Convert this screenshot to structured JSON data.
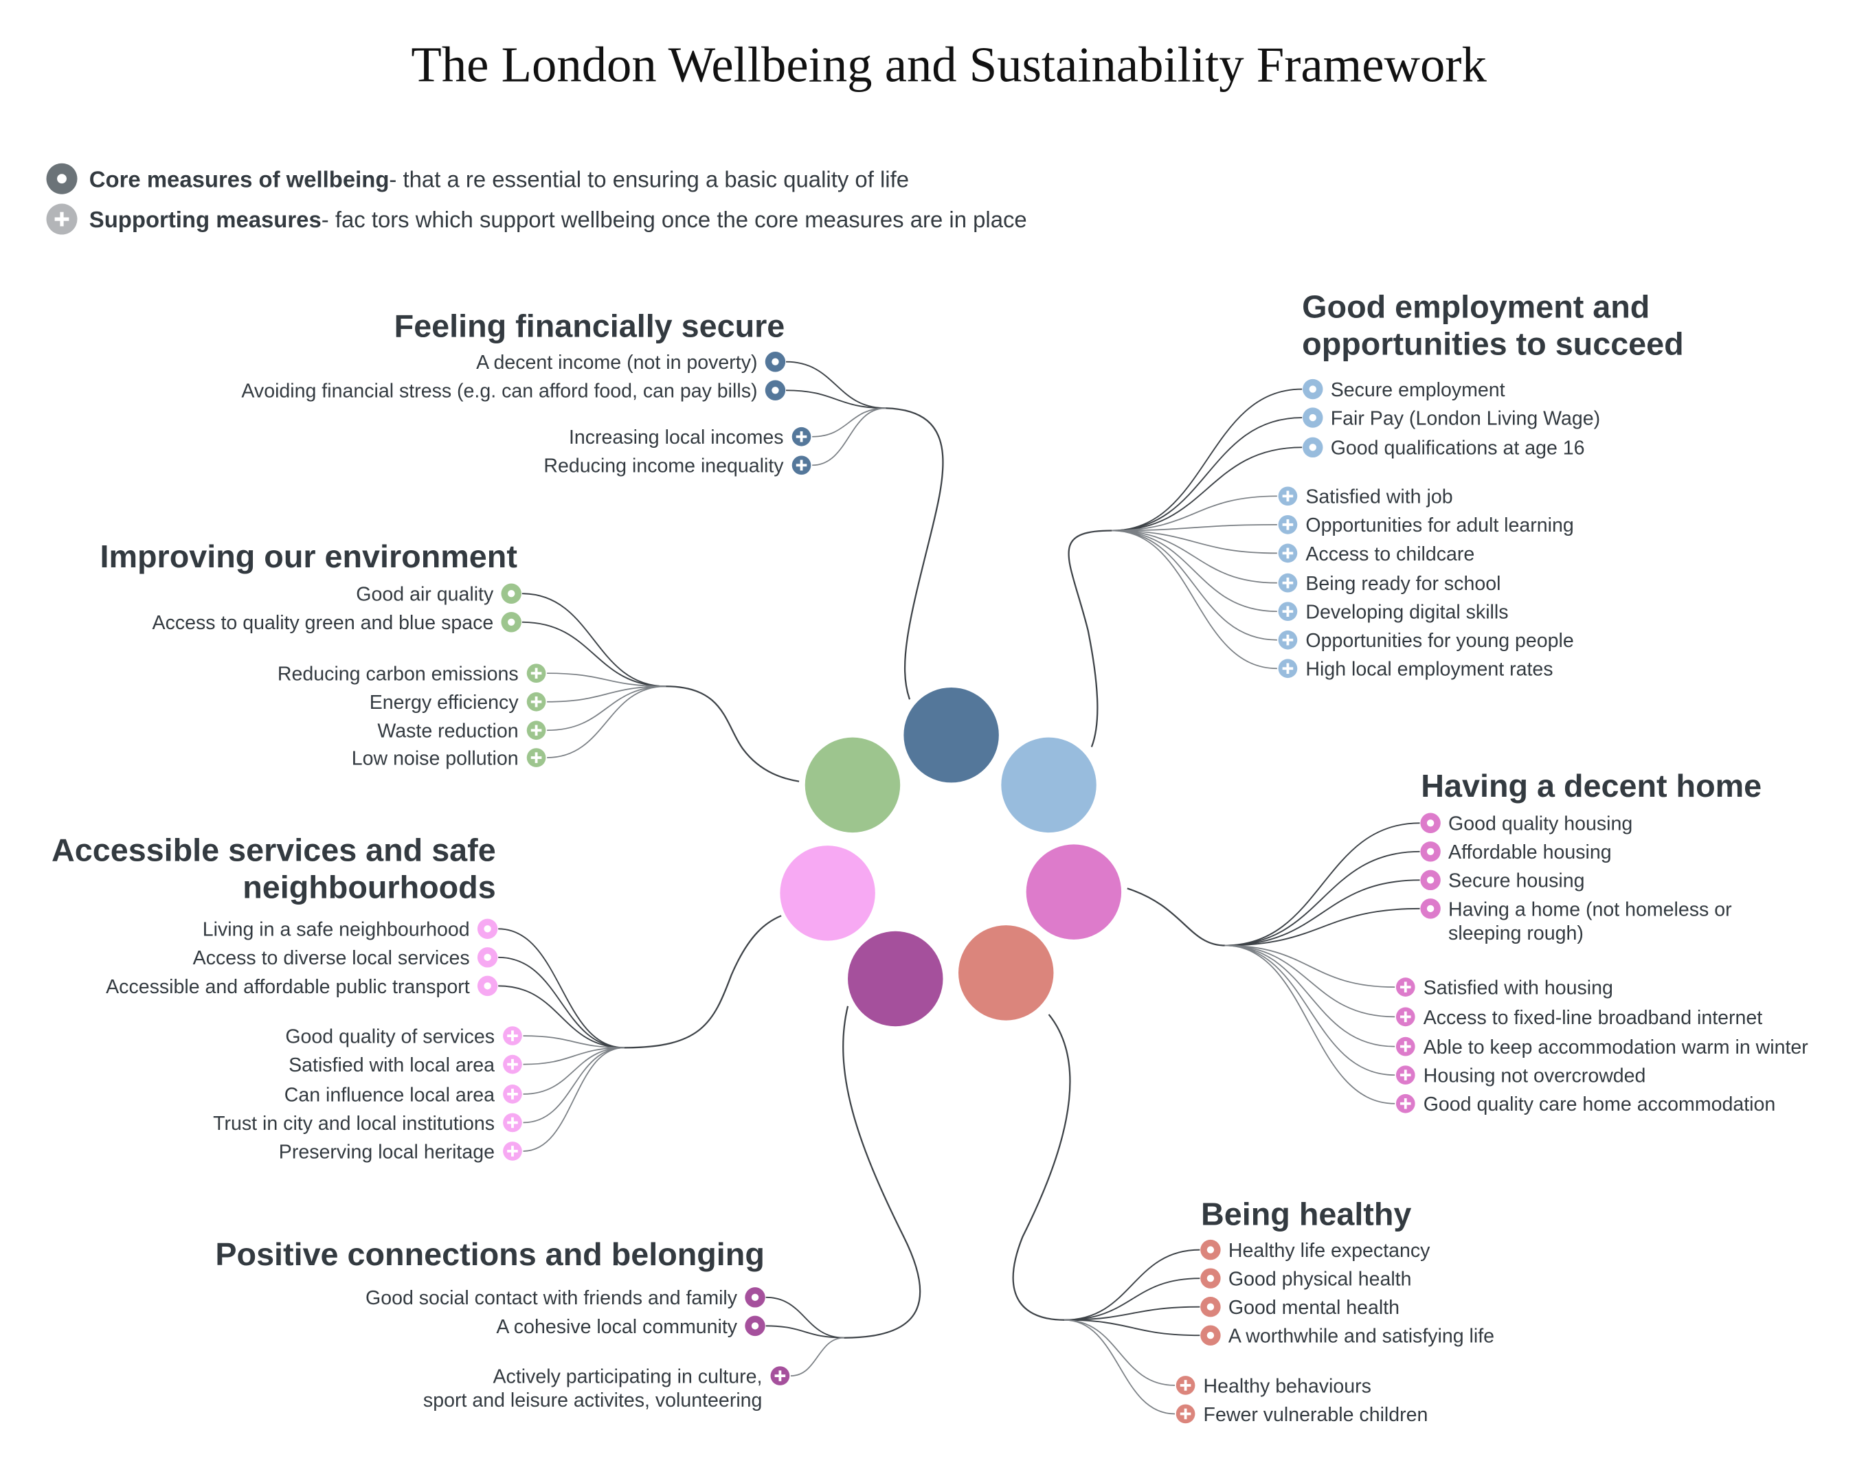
{
  "title": "The London Wellbeing and Sustainability Framework",
  "legend": {
    "core": {
      "bold": "Core measures of wellbeing",
      "text": "- that a re essential to ensuring a basic quality of life",
      "color": "#6b7378",
      "icon": "core-ring-icon"
    },
    "supporting": {
      "bold": "Supporting measures",
      "text": "- fac tors which support wellbeing once the core measures are in place",
      "color": "#b3b5b8",
      "icon": "plus-icon"
    }
  },
  "groups": [
    {
      "id": "financial",
      "title": [
        "Feeling financially secure"
      ],
      "color": "#54779a",
      "core": [
        [
          "A decent income (not in poverty)"
        ],
        [
          "Avoiding financial stress (e.g. can afford food, can pay bills)"
        ]
      ],
      "supporting": [
        [
          "Increasing local incomes"
        ],
        [
          "Reducing income inequality"
        ]
      ]
    },
    {
      "id": "employment",
      "title": [
        "Good employment and",
        "opportunities to succeed"
      ],
      "color": "#98bcdd",
      "core": [
        [
          "Secure employment"
        ],
        [
          "Fair Pay (London Living Wage)"
        ],
        [
          "Good qualifications at age 16"
        ]
      ],
      "supporting": [
        [
          "Satisfied with job"
        ],
        [
          "Opportunities for adult learning"
        ],
        [
          "Access to childcare"
        ],
        [
          "Being ready for school"
        ],
        [
          "Developing digital skills"
        ],
        [
          "Opportunities for young people"
        ],
        [
          "High local employment rates"
        ]
      ]
    },
    {
      "id": "environment",
      "title": [
        "Improving our environment"
      ],
      "color": "#9dc58e",
      "core": [
        [
          "Good air quality"
        ],
        [
          "Access to quality green and blue space"
        ]
      ],
      "supporting": [
        [
          "Reducing carbon emissions"
        ],
        [
          "Energy efficiency"
        ],
        [
          "Waste reduction"
        ],
        [
          "Low noise pollution"
        ]
      ]
    },
    {
      "id": "services",
      "title": [
        "Accessible services and safe",
        "neighbourhoods"
      ],
      "color": "#f7a9f3",
      "core": [
        [
          "Living in a safe neighbourhood"
        ],
        [
          "Access to diverse local services"
        ],
        [
          "Accessible and affordable public transport"
        ]
      ],
      "supporting": [
        [
          "Good quality of services"
        ],
        [
          "Satisfied with local area"
        ],
        [
          "Can influence local area"
        ],
        [
          "Trust in city and local institutions"
        ],
        [
          "Preserving local heritage"
        ]
      ]
    },
    {
      "id": "home",
      "title": [
        "Having a decent home"
      ],
      "color": "#dd7bcb",
      "core": [
        [
          "Good quality housing"
        ],
        [
          "Affordable housing"
        ],
        [
          "Secure housing"
        ],
        [
          "Having a home (not homeless or",
          "sleeping rough)"
        ]
      ],
      "supporting": [
        [
          "Satisfied with housing"
        ],
        [
          "Access to fixed-line broadband internet"
        ],
        [
          "Able to keep accommodation warm in winter"
        ],
        [
          "Housing not overcrowded"
        ],
        [
          "Good quality care home accommodation"
        ]
      ]
    },
    {
      "id": "health",
      "title": [
        "Being healthy"
      ],
      "color": "#db857c",
      "core": [
        [
          "Healthy life expectancy"
        ],
        [
          "Good physical health"
        ],
        [
          "Good mental health"
        ],
        [
          "A worthwhile and satisfying life"
        ]
      ],
      "supporting": [
        [
          "Healthy behaviours"
        ],
        [
          "Fewer vulnerable children"
        ]
      ]
    },
    {
      "id": "connections",
      "title": [
        "Positive connections and belonging"
      ],
      "color": "#a5509c",
      "core": [
        [
          "Good social contact with friends and family"
        ],
        [
          "A cohesive local community"
        ]
      ],
      "supporting": [
        [
          "Actively participating in culture,",
          "sport and leisure activites, volunteering"
        ]
      ]
    }
  ]
}
